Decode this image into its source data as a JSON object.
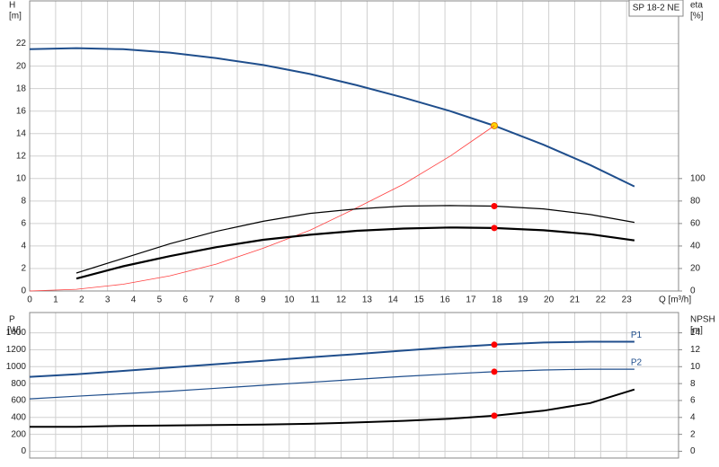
{
  "chart_data": [
    {
      "type": "line",
      "label": "SP 18-2 NE",
      "ylabel": "H",
      "yunit": "[m]",
      "y2label": "eta",
      "y2unit": "[%]",
      "xlabel": "Q [m³/h]",
      "x": [
        0,
        1.8,
        3.6,
        5.4,
        7.2,
        9,
        10.8,
        12.6,
        14.4,
        16.2,
        17.9,
        19.8,
        21.6,
        23.3
      ],
      "operating_point_x": 17.9,
      "xlim": [
        0,
        25
      ],
      "xticks": [
        0,
        1,
        2,
        3,
        4,
        5,
        6,
        7,
        8,
        9,
        10,
        11,
        12,
        13,
        14,
        15,
        16,
        17,
        18,
        19,
        20,
        21,
        22,
        23
      ],
      "ylim": [
        0,
        25.8
      ],
      "yticks": [
        0,
        2,
        4,
        6,
        8,
        10,
        12,
        14,
        16,
        18,
        20,
        22
      ],
      "y2lim": [
        0,
        258
      ],
      "y2ticks": [
        0,
        20,
        40,
        60,
        80,
        100
      ],
      "grid": true,
      "series": [
        {
          "color": "#1f4e8c",
          "linewidth": 2,
          "marker_color": "#ffd700",
          "values": [
            21.5,
            21.6,
            21.5,
            21.2,
            20.7,
            20.1,
            19.3,
            18.3,
            17.2,
            16.0,
            14.7,
            13.0,
            11.2,
            9.3
          ]
        },
        {
          "color": "#ff4040",
          "linewidth": 0.8,
          "values": [
            0,
            0.15,
            0.6,
            1.35,
            2.4,
            3.8,
            5.4,
            7.4,
            9.5,
            12.0,
            14.7,
            null,
            null,
            null
          ]
        },
        {
          "color": "#000000",
          "linewidth": 1.2,
          "axis": "y2",
          "marker_color": "#ff0000",
          "values": [
            null,
            16,
            29,
            42,
            53,
            62,
            69,
            73,
            75.5,
            76,
            75.5,
            73,
            68,
            61
          ]
        },
        {
          "color": "#000000",
          "linewidth": 2.2,
          "axis": "y2",
          "marker_color": "#ff0000",
          "values": [
            null,
            11,
            22,
            31,
            39,
            45.5,
            50,
            53.5,
            55.5,
            56.5,
            56,
            54,
            50.5,
            45
          ]
        }
      ]
    },
    {
      "type": "line",
      "ylabel": "P",
      "yunit": "[W]",
      "y2label": "NPSH",
      "y2unit": "[m]",
      "x": [
        0,
        1.8,
        3.6,
        5.4,
        7.2,
        9,
        10.8,
        12.6,
        14.4,
        16.2,
        17.9,
        19.8,
        21.6,
        23.3
      ],
      "operating_point_x": 17.9,
      "xlim": [
        0,
        25
      ],
      "ylim": [
        -80,
        1640
      ],
      "yticks": [
        0,
        200,
        400,
        600,
        800,
        1000,
        1200,
        1400
      ],
      "y2lim": [
        -0.8,
        16.4
      ],
      "y2ticks": [
        0,
        2,
        4,
        6,
        8,
        10,
        12,
        14
      ],
      "grid": true,
      "series": [
        {
          "name": "P1",
          "color": "#1f4e8c",
          "linewidth": 2,
          "marker_color": "#ff0000",
          "values": [
            880,
            910,
            950,
            990,
            1030,
            1070,
            1110,
            1150,
            1190,
            1230,
            1260,
            1285,
            1295,
            1295
          ]
        },
        {
          "name": "P2",
          "color": "#1f4e8c",
          "linewidth": 1.2,
          "marker_color": "#ff0000",
          "values": [
            620,
            650,
            680,
            710,
            745,
            780,
            815,
            850,
            885,
            915,
            940,
            960,
            970,
            970
          ]
        },
        {
          "color": "#000000",
          "linewidth": 2,
          "axis": "y2",
          "marker_color": "#ff0000",
          "values": [
            2.9,
            2.9,
            3.0,
            3.05,
            3.1,
            3.15,
            3.25,
            3.4,
            3.6,
            3.85,
            4.2,
            4.8,
            5.7,
            7.3
          ]
        }
      ]
    }
  ]
}
